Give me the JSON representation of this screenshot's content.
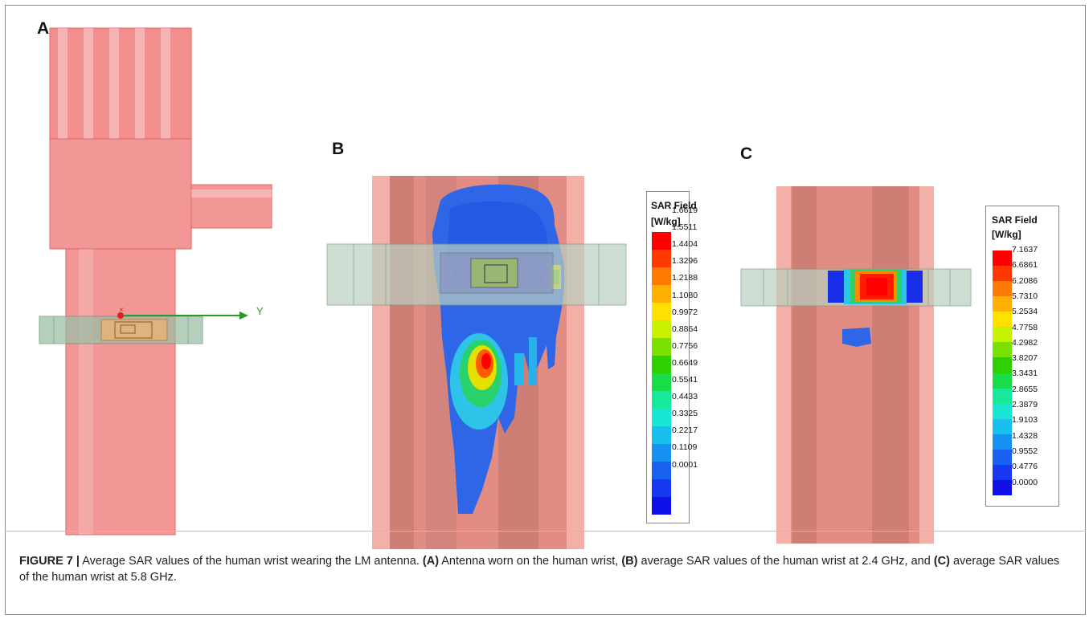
{
  "panels": {
    "a": {
      "letter": "A",
      "axis_label": "Y"
    },
    "b": {
      "letter": "B",
      "legend_title_1": "SAR Field",
      "legend_title_2": "[W/kg]",
      "scale_values": [
        "1.6619",
        "1.5511",
        "1.4404",
        "1.3296",
        "1.2188",
        "1.1080",
        "0.9972",
        "0.8864",
        "0.7756",
        "0.6649",
        "0.5541",
        "0.4433",
        "0.3325",
        "0.2217",
        "0.1109",
        "0.0001"
      ]
    },
    "c": {
      "letter": "C",
      "legend_title_1": "SAR Field",
      "legend_title_2": "[W/kg]",
      "scale_values": [
        "7.1637",
        "6.6861",
        "6.2086",
        "5.7310",
        "5.2534",
        "4.7758",
        "4.2982",
        "3.8207",
        "3.3431",
        "2.8655",
        "2.3879",
        "1.9103",
        "1.4328",
        "0.9552",
        "0.4776",
        "0.0000"
      ]
    }
  },
  "colormap": [
    "#ff0000",
    "#ff3a00",
    "#ff7a00",
    "#ffb000",
    "#ffe000",
    "#c8f000",
    "#7ae000",
    "#2ed000",
    "#18dc48",
    "#18e89a",
    "#1ae6d6",
    "#18c0f0",
    "#1890f0",
    "#1860f0",
    "#1838f0",
    "#1010e8"
  ],
  "caption": {
    "label": "FIGURE 7 |",
    "text_1": " Average SAR values of the human wrist wearing the LM antenna. ",
    "ref_a": "(A)",
    "text_2": " Antenna worn on the human wrist, ",
    "ref_b": "(B)",
    "text_3": " average SAR values of the human wrist at 2.4 GHz, and ",
    "ref_c": "(C)",
    "text_4": " average SAR values of the human wrist at 5.8 GHz."
  }
}
